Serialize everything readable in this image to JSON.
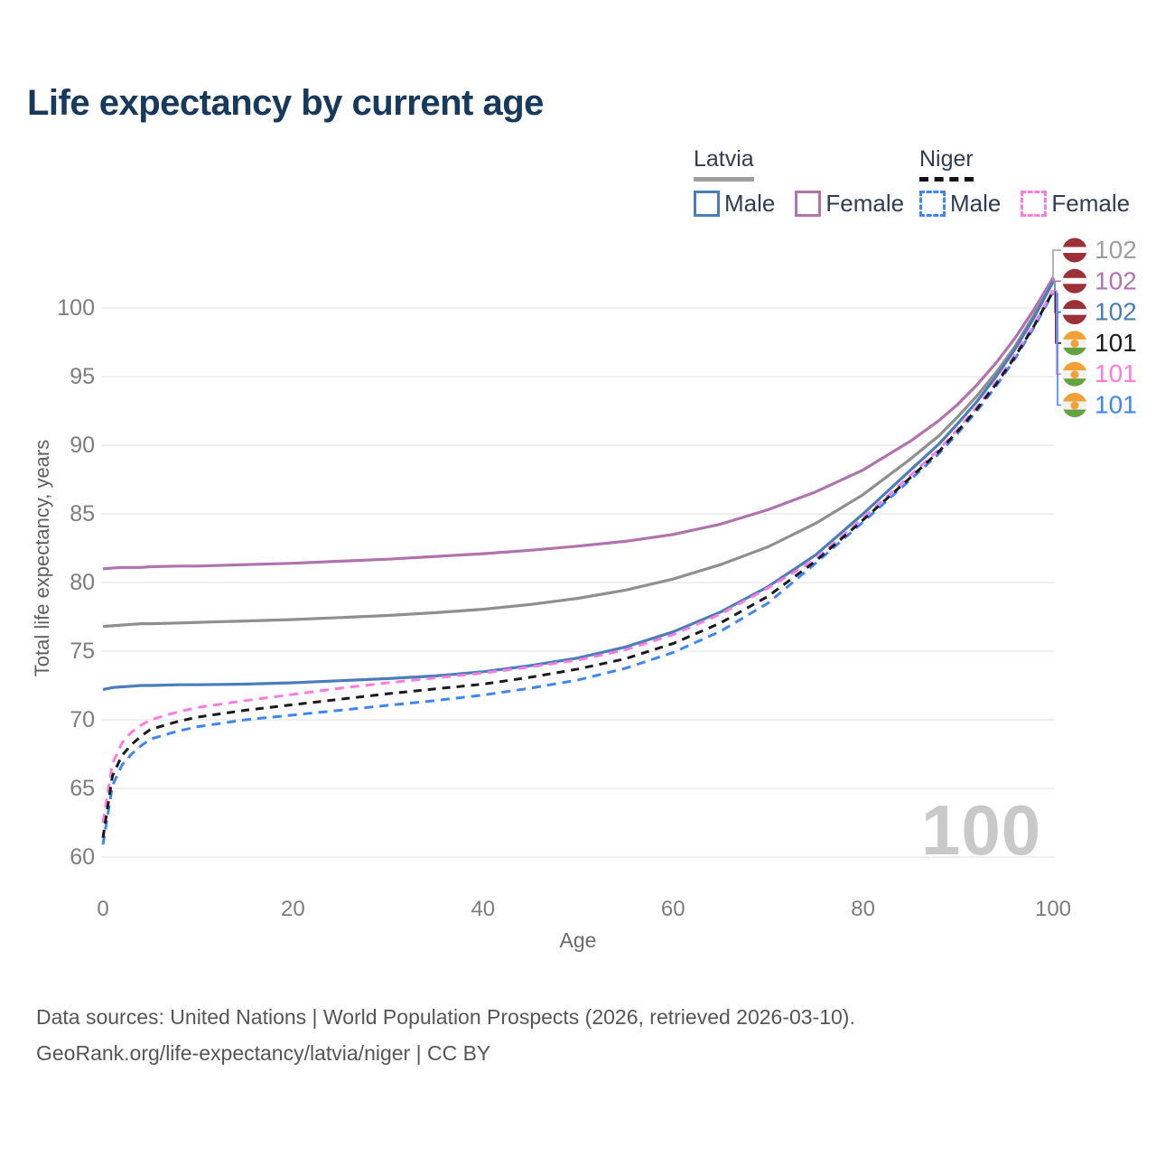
{
  "title": "Life expectancy by current age",
  "watermark_age": "100",
  "y_axis_title": "Total life expectancy, years",
  "x_axis_title": "Age",
  "legend": {
    "groups": [
      {
        "label": "Latvia",
        "line_style": "solid",
        "underline_color": "#9e9e9e",
        "items": [
          {
            "label": "Male",
            "color": "#4a7ebb"
          },
          {
            "label": "Female",
            "color": "#b173ae"
          }
        ]
      },
      {
        "label": "Niger",
        "line_style": "dashed",
        "underline_color": "#111111",
        "items": [
          {
            "label": "Male",
            "color": "#3e86f5"
          },
          {
            "label": "Female",
            "color": "#ff7bdf"
          }
        ]
      }
    ]
  },
  "end_labels": [
    {
      "value": "102",
      "color": "#9e9e9e",
      "flag": "latvia",
      "series": "latvia-total"
    },
    {
      "value": "102",
      "color": "#b173ae",
      "flag": "latvia",
      "series": "latvia-female"
    },
    {
      "value": "102",
      "color": "#4a7ebb",
      "flag": "latvia",
      "series": "latvia-male"
    },
    {
      "value": "101",
      "color": "#1a1a1a",
      "flag": "niger",
      "series": "niger-total"
    },
    {
      "value": "101",
      "color": "#ff7bdf",
      "flag": "niger",
      "series": "niger-female"
    },
    {
      "value": "101",
      "color": "#3e86f5",
      "flag": "niger",
      "series": "niger-male"
    }
  ],
  "footer": {
    "line1": "Data sources: United Nations | World Population Prospects (2026, retrieved 2026-03-10).",
    "line2": "GeoRank.org/life-expectancy/latvia/niger | CC BY"
  },
  "flag_colors": {
    "latvia_red": "#9e3039",
    "latvia_white": "#ffffff",
    "niger_orange": "#f2a137",
    "niger_white": "#f2f2f2",
    "niger_green": "#62a23f"
  },
  "chart_data": {
    "type": "line",
    "title": "Life expectancy by current age",
    "xlabel": "Age",
    "ylabel": "Total life expectancy, years",
    "x_ticks": [
      0,
      20,
      40,
      60,
      80,
      100
    ],
    "y_ticks": [
      60,
      65,
      70,
      75,
      80,
      85,
      90,
      95,
      100
    ],
    "xlim": [
      0,
      100
    ],
    "ylim": [
      58,
      103
    ],
    "grid": "horizontal",
    "legend_position": "top-right",
    "x": [
      0,
      1,
      2,
      3,
      4,
      5,
      8,
      10,
      15,
      20,
      25,
      30,
      35,
      40,
      45,
      50,
      55,
      60,
      65,
      70,
      75,
      80,
      85,
      88,
      90,
      92,
      94,
      96,
      98,
      100
    ],
    "series": [
      {
        "id": "latvia-total",
        "name": "Latvia Both sexes",
        "country": "Latvia",
        "sex": "Both",
        "color": "#8f8f8f",
        "dashed": false,
        "values": [
          76.8,
          76.85,
          76.9,
          76.95,
          77.0,
          77.0,
          77.05,
          77.1,
          77.2,
          77.3,
          77.45,
          77.6,
          77.8,
          78.05,
          78.4,
          78.85,
          79.45,
          80.25,
          81.3,
          82.6,
          84.3,
          86.4,
          89.0,
          90.7,
          92.1,
          93.6,
          95.3,
          97.2,
          99.5,
          102.0
        ]
      },
      {
        "id": "latvia-female",
        "name": "Latvia Female",
        "country": "Latvia",
        "sex": "Female",
        "color": "#b173ae",
        "dashed": false,
        "values": [
          81.0,
          81.05,
          81.1,
          81.1,
          81.1,
          81.15,
          81.2,
          81.2,
          81.3,
          81.4,
          81.55,
          81.7,
          81.9,
          82.1,
          82.35,
          82.65,
          83.0,
          83.5,
          84.25,
          85.3,
          86.6,
          88.2,
          90.3,
          91.8,
          93.0,
          94.4,
          96.0,
          97.8,
          99.9,
          102.2
        ]
      },
      {
        "id": "latvia-male",
        "name": "Latvia Male",
        "country": "Latvia",
        "sex": "Male",
        "color": "#4a7ebb",
        "dashed": false,
        "values": [
          72.2,
          72.35,
          72.4,
          72.45,
          72.5,
          72.5,
          72.55,
          72.55,
          72.6,
          72.7,
          72.85,
          73.0,
          73.2,
          73.5,
          73.95,
          74.5,
          75.3,
          76.4,
          77.85,
          79.7,
          82.0,
          85.0,
          88.2,
          90.1,
          91.6,
          93.2,
          95.0,
          97.0,
          99.3,
          101.9
        ]
      },
      {
        "id": "niger-male",
        "name": "Niger Male",
        "country": "Niger",
        "sex": "Male",
        "color": "#3e86f5",
        "dashed": true,
        "values": [
          60.9,
          65.2,
          66.7,
          67.5,
          68.1,
          68.6,
          69.2,
          69.5,
          70.0,
          70.35,
          70.7,
          71.05,
          71.4,
          71.8,
          72.3,
          72.9,
          73.75,
          74.9,
          76.45,
          78.5,
          81.4,
          84.4,
          87.5,
          89.4,
          90.9,
          92.5,
          94.3,
          96.3,
          98.6,
          101.1
        ]
      },
      {
        "id": "niger-female",
        "name": "Niger Female",
        "country": "Niger",
        "sex": "Female",
        "color": "#ff7bdf",
        "dashed": true,
        "values": [
          62.5,
          66.8,
          68.3,
          69.1,
          69.6,
          70.0,
          70.6,
          70.9,
          71.4,
          71.85,
          72.3,
          72.7,
          73.05,
          73.4,
          73.85,
          74.35,
          75.1,
          76.2,
          77.7,
          79.6,
          81.7,
          84.7,
          87.8,
          89.7,
          91.2,
          92.8,
          94.6,
          96.6,
          98.8,
          101.3
        ]
      },
      {
        "id": "niger-total",
        "name": "Niger Both sexes",
        "country": "Niger",
        "sex": "Both",
        "color": "#1a1a1a",
        "dashed": true,
        "values": [
          61.4,
          65.9,
          67.4,
          68.2,
          68.8,
          69.3,
          69.9,
          70.2,
          70.7,
          71.1,
          71.5,
          71.9,
          72.25,
          72.6,
          73.1,
          73.7,
          74.45,
          75.55,
          77.05,
          79.0,
          81.55,
          84.55,
          87.65,
          89.55,
          91.05,
          92.65,
          94.45,
          96.45,
          98.7,
          101.2
        ]
      }
    ]
  },
  "style_colors": {
    "title": "#16395c",
    "tick_label": "#7d7d7d",
    "gridline": "#ececec",
    "watermark": "#c9c9c9",
    "connector_gray": "#9e9e9e"
  }
}
